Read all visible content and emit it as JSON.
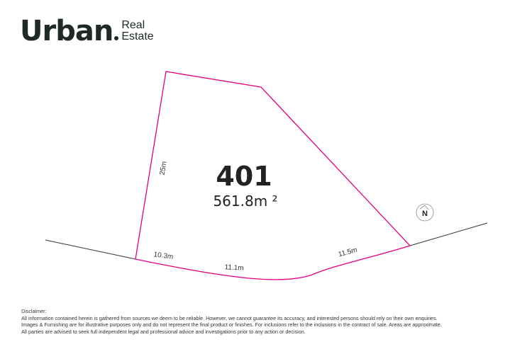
{
  "logo": {
    "main": "Urban",
    "sub_line1": "Real",
    "sub_line2": "Estate"
  },
  "lot": {
    "number": "401",
    "area": "561.8m ²",
    "dimensions": {
      "left": "25m",
      "bottom_left": "10.3m",
      "bottom_middle": "11.1m",
      "bottom_right": "11.5m"
    }
  },
  "compass": {
    "label": "N"
  },
  "colors": {
    "boundary": "#e6007e",
    "road": "#333333"
  },
  "disclaimer": {
    "title": "Disclaimer:",
    "lines": [
      "All information contained herein is gathered from sources we deem to be reliable. However, we cannot guarantee its accuracy, and interested persons should rely on their own enquiries.",
      "Images & Furnishing are for illustrative purposes only and do not represent the final product or finishes. For inclusions refer to the inclusions in the contract of sale. Areas are approximate.",
      "All parties are advised to seek full independent legal and professional advice and investigations prior to any action or decision."
    ]
  }
}
